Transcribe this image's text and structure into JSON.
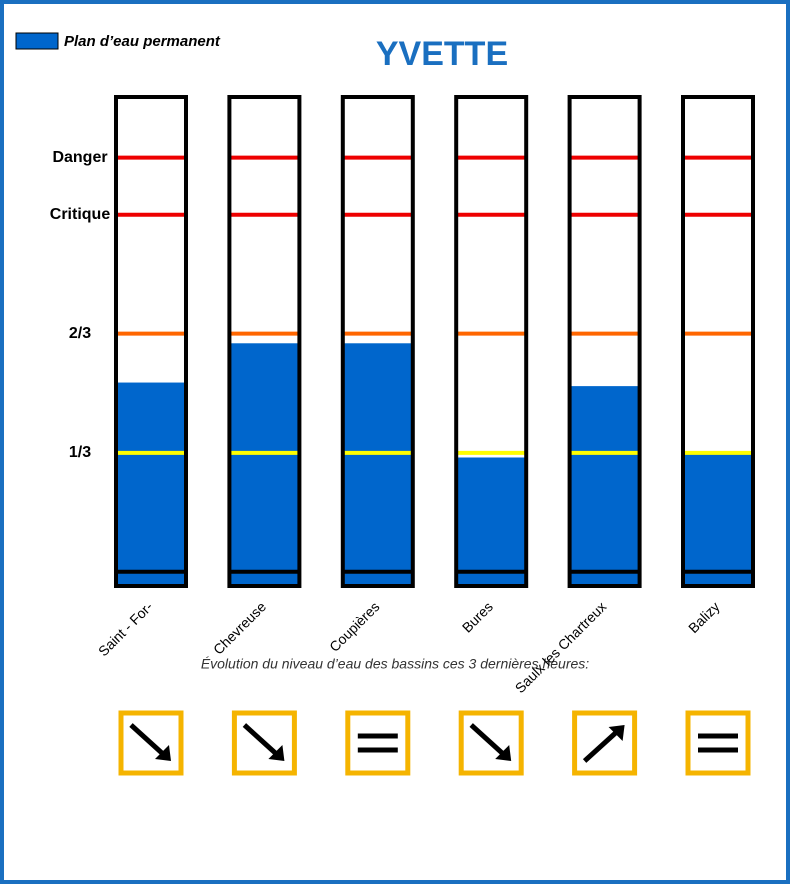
{
  "chart_data": {
    "type": "bar",
    "title": "YVETTE",
    "subtitle": "Évolution du niveau d’eau des bassins ces 3 dernières heures:",
    "series": [
      {
        "name": "Plan d’eau permanent",
        "color": "#0066cc",
        "values": [
          0.53,
          0.64,
          0.64,
          0.32,
          0.52,
          0.33
        ]
      }
    ],
    "categories": [
      "Saint - For-",
      "Chevreuse",
      "Coupières",
      "Bures",
      "Saulx les Chartreux",
      "Balizy"
    ],
    "ylim": [
      -0.04,
      1.33
    ],
    "yticks": [
      {
        "value": 0.333,
        "label": "1/3"
      },
      {
        "value": 0.667,
        "label": "2/3"
      },
      {
        "value": 1,
        "label": "Critique"
      },
      {
        "value": 1.16,
        "label": "Danger"
      }
    ],
    "level_colors": [
      "#ffff00",
      "#ff6600",
      "#ee0000",
      "#ee0000"
    ],
    "trends": [
      "down",
      "down",
      "stable",
      "down",
      "up",
      "stable"
    ],
    "trend_color": "#f5b400"
  }
}
